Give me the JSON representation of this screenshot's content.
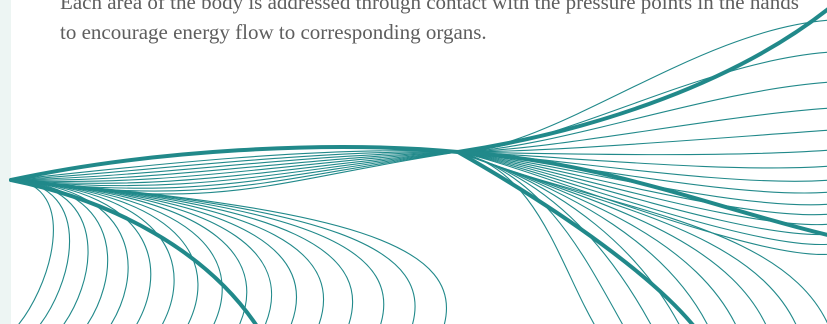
{
  "content": {
    "description": "Each area of the body is addressed through contact with the pressure points in the hands to encourage energy flow to corresponding organs."
  },
  "art": {
    "name": "flowing-lines-illustration",
    "line_color": "#21898a",
    "strip_color": "#edf5f3"
  }
}
